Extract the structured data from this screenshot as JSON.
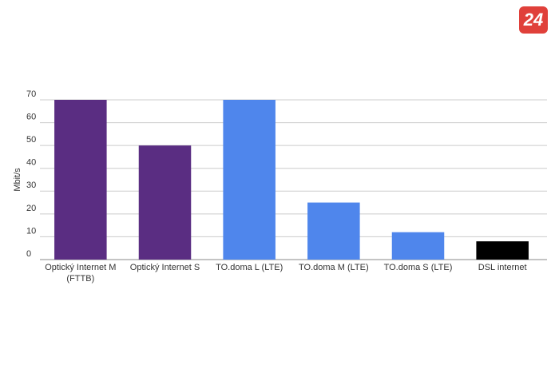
{
  "logo": "24",
  "chart_data": {
    "type": "bar",
    "y_label": "Mbit/s",
    "categories": [
      "Optický Internet M (FTTB)",
      "Optický Internet S",
      "TO.doma L (LTE)",
      "TO.doma M (LTE)",
      "TO.doma S (LTE)",
      "DSL internet"
    ],
    "values": [
      70,
      50,
      70,
      25,
      12,
      8
    ],
    "colors": [
      "#5a2d82",
      "#5a2d82",
      "#4f86ec",
      "#4f86ec",
      "#4f86ec",
      "#000000"
    ],
    "ylim": [
      0,
      70
    ],
    "yticks": [
      0,
      10,
      20,
      30,
      40,
      50,
      60,
      70
    ],
    "grid": true
  }
}
